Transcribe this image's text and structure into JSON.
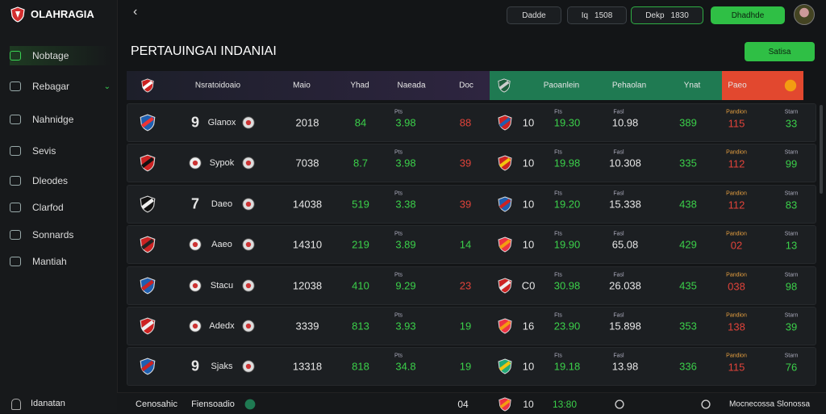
{
  "brand": "OLAHRAGIA",
  "nav": [
    "Nobtage",
    "Rebagar",
    "Nahnidge",
    "Sevis",
    "Dleodes",
    "Clarfod",
    "Sonnards",
    "Mantiah"
  ],
  "nav_footer": "Idanatan",
  "top_buttons": [
    {
      "label": "Dadde"
    },
    {
      "label": "Iq",
      "value": "1508"
    },
    {
      "label": "Dekp",
      "value": "1830"
    },
    {
      "label": "Dhadhde"
    }
  ],
  "title": "PERTAUINGAI INDANIAI",
  "action": "Satisa",
  "headers": {
    "left": [
      "Nsratoidoaio",
      "Maio",
      "Yhad",
      "Naeada",
      "Doc"
    ],
    "mid": [
      "Paoanlein",
      "Pehaolan",
      "Ynat"
    ],
    "right": "Paeo"
  },
  "rows": [
    {
      "num": "9",
      "team": "Glanox",
      "a": "2018",
      "b": "84",
      "c_label": "Pts",
      "c": "3.98",
      "d": "88",
      "d_color": "#e0433a",
      "e": "10",
      "f_label": "Fts",
      "f": "19.30",
      "g_label": "Fasl",
      "g": "10.98",
      "h": "389",
      "i_label": "Pandion",
      "i": "115",
      "j_label": "Starn",
      "j": "33"
    },
    {
      "num": "",
      "team": "Sypok",
      "a": "7038",
      "b": "8.7",
      "c_label": "Pts",
      "c": "3.98",
      "d": "39",
      "d_color": "#e0433a",
      "e": "10",
      "f_label": "Fts",
      "f": "19.98",
      "g_label": "Fasl",
      "g": "10.308",
      "h": "335",
      "i_label": "Pandion",
      "i": "112",
      "j_label": "Starn",
      "j": "99"
    },
    {
      "num": "7",
      "team": "Daeo",
      "a": "14038",
      "b": "519",
      "c_label": "Pts",
      "c": "3.38",
      "d": "39",
      "d_color": "#e0433a",
      "e": "10",
      "f_label": "Fts",
      "f": "19.20",
      "g_label": "Fasl",
      "g": "15.338",
      "h": "438",
      "i_label": "Pandion",
      "i": "112",
      "j_label": "Starn",
      "j": "83"
    },
    {
      "num": "",
      "team": "Aaeo",
      "a": "14310",
      "b": "219",
      "c_label": "Pts",
      "c": "3.89",
      "d": "14",
      "d_color": "#3bd04a",
      "e": "10",
      "f_label": "Fts",
      "f": "19.90",
      "g_label": "Fasl",
      "g": "65.08",
      "h": "429",
      "i_label": "Pandion",
      "i": "02",
      "j_label": "Starn",
      "j": "13"
    },
    {
      "num": "",
      "team": "Stacu",
      "a": "12038",
      "b": "410",
      "c_label": "Pts",
      "c": "9.29",
      "d": "23",
      "d_color": "#e0433a",
      "e": "C0",
      "f_label": "Fts",
      "f": "30.98",
      "g_label": "Fasl",
      "g": "26.038",
      "h": "435",
      "i_label": "Pandion",
      "i": "038",
      "j_label": "Starn",
      "j": "98"
    },
    {
      "num": "",
      "team": "Adedx",
      "a": "3339",
      "b": "813",
      "c_label": "Pts",
      "c": "3.93",
      "d": "19",
      "d_color": "#3bd04a",
      "e": "16",
      "f_label": "Fts",
      "f": "23.90",
      "g_label": "Fasl",
      "g": "15.898",
      "h": "353",
      "i_label": "Pandion",
      "i": "138",
      "j_label": "Starn",
      "j": "39"
    },
    {
      "num": "9",
      "team": "Sjaks",
      "a": "13318",
      "b": "818",
      "c_label": "Pts",
      "c": "34.8",
      "d": "19",
      "d_color": "#3bd04a",
      "e": "10",
      "f_label": "Fts",
      "f": "19.18",
      "g_label": "Fasl",
      "g": "13.98",
      "h": "336",
      "i_label": "Pandion",
      "i": "115",
      "j_label": "Starn",
      "j": "76"
    }
  ],
  "footer": {
    "left": "Cenosahic",
    "team": "Fiensoadio",
    "score": "04",
    "num": "10",
    "time": "13:80",
    "right": "Mocnecossa Slonossa"
  }
}
